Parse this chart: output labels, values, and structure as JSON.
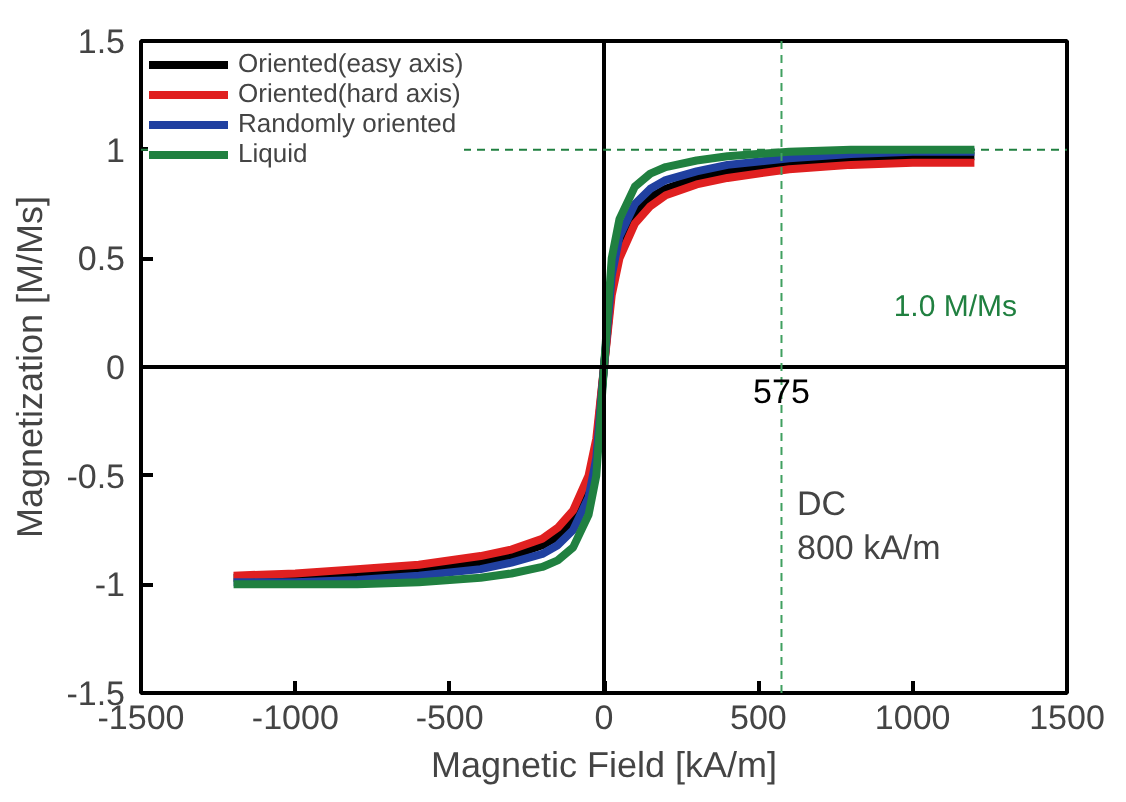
{
  "chart_data": {
    "type": "line",
    "xlabel": "Magnetic Field [kA/m]",
    "ylabel": "Magnetization [M/Ms]",
    "x": [
      -1200,
      -1000,
      -800,
      -600,
      -400,
      -300,
      -200,
      -150,
      -100,
      -50,
      -25,
      0,
      25,
      50,
      100,
      150,
      200,
      300,
      400,
      600,
      800,
      1000,
      1200
    ],
    "series": [
      {
        "name": "Oriented(easy axis)",
        "color": "#000000",
        "values": [
          -0.97,
          -0.97,
          -0.95,
          -0.93,
          -0.9,
          -0.87,
          -0.82,
          -0.78,
          -0.7,
          -0.55,
          -0.37,
          0,
          0.37,
          0.55,
          0.7,
          0.78,
          0.82,
          0.87,
          0.9,
          0.93,
          0.95,
          0.97,
          0.97
        ]
      },
      {
        "name": "Oriented(hard axis)",
        "color": "#e02020",
        "values": [
          -0.96,
          -0.95,
          -0.93,
          -0.91,
          -0.87,
          -0.84,
          -0.79,
          -0.74,
          -0.66,
          -0.5,
          -0.33,
          0,
          0.33,
          0.5,
          0.66,
          0.74,
          0.79,
          0.84,
          0.87,
          0.91,
          0.93,
          0.94,
          0.94
        ]
      },
      {
        "name": "Randomly oriented",
        "color": "#2040a0",
        "values": [
          -0.99,
          -0.99,
          -0.98,
          -0.96,
          -0.93,
          -0.9,
          -0.86,
          -0.82,
          -0.75,
          -0.6,
          -0.42,
          0,
          0.42,
          0.6,
          0.75,
          0.82,
          0.86,
          0.9,
          0.93,
          0.96,
          0.98,
          0.99,
          0.99
        ]
      },
      {
        "name": "Liquid",
        "color": "#208040",
        "values": [
          -1.0,
          -1.0,
          -1.0,
          -0.99,
          -0.97,
          -0.95,
          -0.92,
          -0.89,
          -0.83,
          -0.68,
          -0.5,
          0,
          0.5,
          0.68,
          0.83,
          0.89,
          0.92,
          0.95,
          0.97,
          0.99,
          1.0,
          1.0,
          1.0
        ]
      }
    ],
    "xlim": [
      -1500,
      1500
    ],
    "ylim": [
      -1.5,
      1.5
    ],
    "xticks": [
      -1500,
      -1000,
      -500,
      0,
      500,
      1000,
      1500
    ],
    "yticks": [
      -1.5,
      -1,
      -0.5,
      0,
      0.5,
      1,
      1.5
    ],
    "ref_lines": [
      {
        "axis": "x",
        "value": 0,
        "color": "#000000",
        "line_style": "solid"
      },
      {
        "axis": "y",
        "value": 0,
        "color": "#000000",
        "line_style": "solid"
      },
      {
        "axis": "x",
        "value": 575,
        "label": "575",
        "color": "#40a060",
        "line_style": "dashed"
      },
      {
        "axis": "y",
        "value": 1,
        "label": "1.0 M/Ms",
        "color": "#208040",
        "line_style": "dashed"
      }
    ],
    "annotations": [
      "DC",
      "800 kA/m"
    ],
    "legend": "top left",
    "grid": false,
    "marker": "none",
    "line_style": "solid"
  }
}
